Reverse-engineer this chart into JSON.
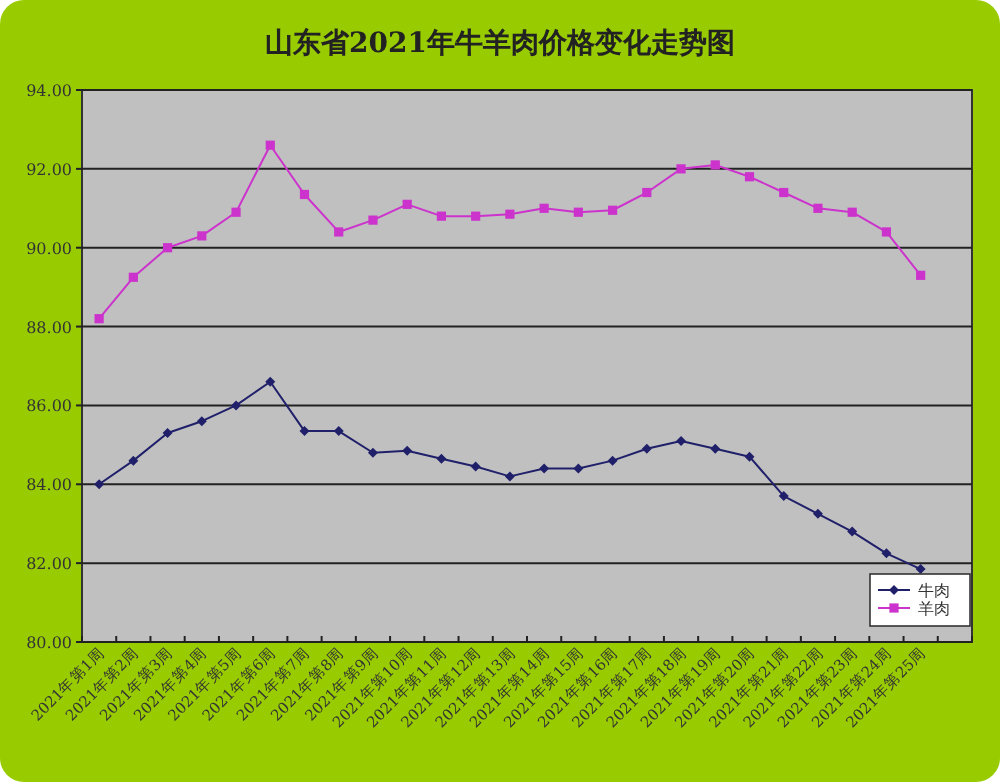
{
  "chart_data": {
    "type": "line",
    "title": "山东省2021年牛羊肉价格变化走势图",
    "categories": [
      "2021年第1周",
      "2021年第2周",
      "2021年第3周",
      "2021年第4周",
      "2021年第5周",
      "2021年第6周",
      "2021年第7周",
      "2021年第8周",
      "2021年第9周",
      "2021年第10周",
      "2021年第11周",
      "2021年第12周",
      "2021年第13周",
      "2021年第14周",
      "2021年第15周",
      "2021年第16周",
      "2021年第17周",
      "2021年第18周",
      "2021年第19周",
      "2021年第20周",
      "2021年第21周",
      "2021年第22周",
      "2021年第23周",
      "2021年第24周",
      "2021年第25周"
    ],
    "series": [
      {
        "name": "牛肉",
        "color": "#20206a",
        "marker": "diamond",
        "values": [
          84.0,
          84.6,
          85.3,
          85.6,
          86.0,
          86.6,
          85.35,
          85.35,
          84.8,
          84.85,
          84.65,
          84.45,
          84.2,
          84.4,
          84.4,
          84.6,
          84.9,
          85.1,
          84.9,
          84.7,
          83.7,
          83.25,
          82.8,
          82.25,
          81.85
        ]
      },
      {
        "name": "羊肉",
        "color": "#cc33cc",
        "marker": "square",
        "values": [
          88.2,
          89.25,
          90.0,
          90.3,
          90.9,
          92.6,
          91.35,
          90.4,
          90.7,
          91.1,
          90.8,
          90.8,
          90.85,
          91.0,
          90.9,
          90.95,
          91.4,
          92.0,
          92.1,
          91.8,
          91.4,
          91.0,
          90.9,
          90.4,
          89.3
        ]
      }
    ],
    "ylim": [
      80,
      94
    ],
    "yticks": [
      {
        "value": 80,
        "label": "80.00"
      },
      {
        "value": 82,
        "label": "82.00"
      },
      {
        "value": 84,
        "label": "84.00"
      },
      {
        "value": 86,
        "label": "86.00"
      },
      {
        "value": 88,
        "label": "88.00"
      },
      {
        "value": 90,
        "label": "90.00"
      },
      {
        "value": 92,
        "label": "92.00"
      },
      {
        "value": 94,
        "label": "94.00"
      }
    ],
    "grid": "y",
    "legend": "bottom right",
    "line_style": "solid"
  }
}
